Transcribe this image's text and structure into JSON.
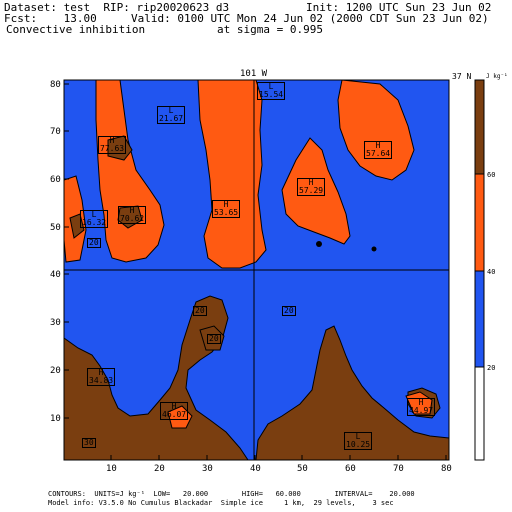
{
  "header": {
    "dataset": "Dataset: test  RIP: rip20020623 d3",
    "init": "Init: 1200 UTC Sun 23 Jun 02",
    "fcst": "Fcst:    13.00",
    "valid": "Valid: 0100 UTC Mon 24 Jun 02 (2000 CDT Sun 23 Jun 02)",
    "field": "Convective inhibition",
    "sigma": "at sigma = 0.995"
  },
  "plot": {
    "top_label": "101 W",
    "right_label": "37 N",
    "x_ticks": [
      "10",
      "20",
      "30",
      "40",
      "50",
      "60",
      "70",
      "80"
    ],
    "y_ticks": [
      "10",
      "20",
      "30",
      "40",
      "50",
      "60",
      "70",
      "80"
    ],
    "colors": {
      "blue": "#2155f0",
      "orange": "#ff5a12",
      "brown": "#7a3e10",
      "ocean_line": "#000000"
    }
  },
  "colorbar": {
    "unit": "J kg⁻¹",
    "ticks": [
      "20",
      "40",
      "60"
    ],
    "bands": [
      {
        "color": "#ffffff",
        "range": "0-20"
      },
      {
        "color": "#2155f0",
        "range": "20-40"
      },
      {
        "color": "#ff5a12",
        "range": "40-60"
      },
      {
        "color": "#7a3e10",
        "range": "60+"
      }
    ]
  },
  "labels": [
    {
      "id": "L1",
      "kind": "L",
      "value": "15.54"
    },
    {
      "id": "L2",
      "kind": "L",
      "value": "21.67"
    },
    {
      "id": "H1",
      "kind": "H",
      "value": "77.63"
    },
    {
      "id": "H2",
      "kind": "H",
      "value": "57.64"
    },
    {
      "id": "H3",
      "kind": "H",
      "value": "57.29"
    },
    {
      "id": "H4",
      "kind": "H",
      "value": "53.65"
    },
    {
      "id": "L3",
      "kind": "L",
      "value": "16.32"
    },
    {
      "id": "H5",
      "kind": "H",
      "value": "70.62"
    },
    {
      "id": "C1",
      "kind": "",
      "value": "20"
    },
    {
      "id": "C2",
      "kind": "",
      "value": "20"
    },
    {
      "id": "C3",
      "kind": "",
      "value": "20"
    },
    {
      "id": "C4",
      "kind": "",
      "value": "20"
    },
    {
      "id": "H6",
      "kind": "H",
      "value": "34.83"
    },
    {
      "id": "H7",
      "kind": "H",
      "value": "46.07"
    },
    {
      "id": "H8",
      "kind": "H",
      "value": "44.97"
    },
    {
      "id": "C5",
      "kind": "",
      "value": "30"
    },
    {
      "id": "L4",
      "kind": "L",
      "value": "10.25"
    }
  ],
  "footer": {
    "contours": "CONTOURS:  UNITS=J kg⁻¹  LOW=   20.000        HIGH=   60.000        INTERVAL=    20.000",
    "model": "Model info: V3.5.0 No Cumulus Blackadar  Simple ice     1 km,  29 levels,    3 sec"
  }
}
